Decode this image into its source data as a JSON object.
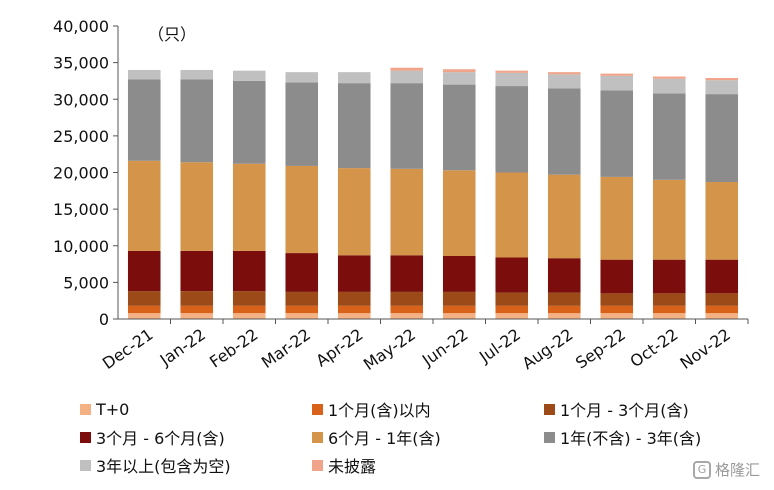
{
  "chart_data": {
    "type": "bar",
    "stacked": true,
    "unit": "（只）",
    "categories": [
      "Dec-21",
      "Jan-22",
      "Feb-22",
      "Mar-22",
      "Apr-22",
      "May-22",
      "Jun-22",
      "Jul-22",
      "Aug-22",
      "Sep-22",
      "Oct-22",
      "Nov-22"
    ],
    "ylim": [
      0,
      40000
    ],
    "yticks": [
      "0",
      "5,000",
      "10,000",
      "15,000",
      "20,000",
      "25,000",
      "30,000",
      "35,000",
      "40,000"
    ],
    "grid": false,
    "legend_position": "bottom",
    "series": [
      {
        "name": "T+0",
        "color": "#f4b183",
        "values": [
          800,
          800,
          800,
          800,
          800,
          800,
          800,
          800,
          800,
          800,
          800,
          800
        ]
      },
      {
        "name": "1个月(含)以内",
        "color": "#d9621a",
        "values": [
          1000,
          1000,
          1000,
          1000,
          1000,
          1000,
          1000,
          1000,
          1000,
          1000,
          1000,
          1000
        ]
      },
      {
        "name": "1个月 - 3个月(含)",
        "color": "#9c4a17",
        "values": [
          2000,
          2000,
          2000,
          1900,
          1900,
          1900,
          1900,
          1800,
          1800,
          1700,
          1700,
          1700
        ]
      },
      {
        "name": "3个月 - 6个月(含)",
        "color": "#7b0d0d",
        "values": [
          5500,
          5500,
          5500,
          5300,
          5000,
          5000,
          4900,
          4800,
          4700,
          4600,
          4600,
          4600
        ]
      },
      {
        "name": "6个月 - 1年(含)",
        "color": "#d4954a",
        "values": [
          12300,
          12100,
          11900,
          11900,
          11900,
          11800,
          11700,
          11600,
          11400,
          11300,
          10900,
          10600
        ]
      },
      {
        "name": "1年(不含) - 3年(含)",
        "color": "#8c8c8c",
        "values": [
          11100,
          11300,
          11300,
          11400,
          11600,
          11700,
          11700,
          11800,
          11800,
          11800,
          11800,
          12000
        ]
      },
      {
        "name": "3年以上(包含为空)",
        "color": "#c0c0c0",
        "values": [
          1300,
          1300,
          1400,
          1400,
          1500,
          1700,
          1700,
          1800,
          1900,
          2000,
          2000,
          1900
        ]
      },
      {
        "name": "未披露",
        "color": "#f0a48a",
        "values": [
          0,
          0,
          0,
          0,
          0,
          400,
          400,
          300,
          300,
          300,
          300,
          300
        ]
      }
    ]
  },
  "watermark": {
    "logo": "G",
    "text": "格隆汇"
  }
}
